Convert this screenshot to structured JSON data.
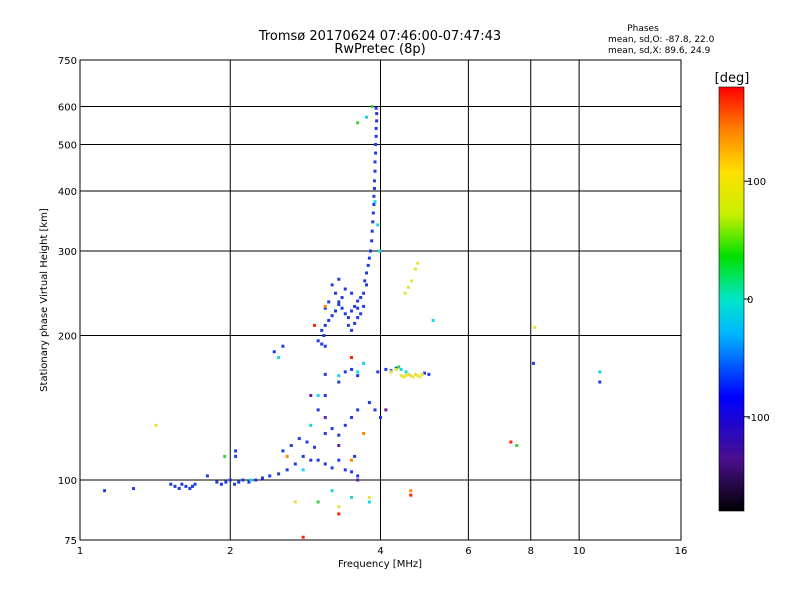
{
  "title_line1": "Tromsø 20170624 07:46:00-07:47:43",
  "title_line2": "RwPretec (8p)",
  "stats": {
    "heading": "Phases",
    "line_o": "mean, sd,O: -87.8, 22.0",
    "line_x": "mean, sd,X:  89.6, 24.9"
  },
  "chart_data": {
    "type": "scatter",
    "xlabel": "Frequency [MHz]",
    "ylabel": "Stationary phase Virtual Height [km]",
    "x_scale": "log",
    "y_scale": "log",
    "xlim": [
      1,
      16
    ],
    "ylim": [
      75,
      750
    ],
    "x_ticks": [
      1,
      2,
      4,
      6,
      8,
      10,
      16
    ],
    "y_ticks": [
      75,
      100,
      200,
      300,
      400,
      500,
      600,
      750
    ],
    "grid": true,
    "colorbar": {
      "label": "[deg]",
      "range": [
        -180,
        180
      ],
      "ticks": [
        100,
        0,
        -100
      ]
    },
    "colors": {
      "o_mode": "#1f3be6",
      "o_mode_alt": "#2a7bff",
      "x_mode": "#e8e23a",
      "x_mode_alt": "#f2c400",
      "cyan": "#19d6e6",
      "green": "#3ad13a",
      "red": "#ff2200",
      "orange": "#ff8800",
      "purple": "#6a1fa8"
    },
    "series": [
      {
        "color_key": "o_mode",
        "points": [
          [
            1.12,
            95
          ],
          [
            1.28,
            96
          ],
          [
            1.52,
            98
          ],
          [
            1.55,
            97
          ],
          [
            1.58,
            96
          ],
          [
            1.6,
            98
          ],
          [
            1.63,
            97
          ],
          [
            1.66,
            96
          ],
          [
            1.68,
            97
          ],
          [
            1.7,
            98
          ],
          [
            1.8,
            102
          ],
          [
            1.88,
            99
          ],
          [
            1.92,
            98
          ],
          [
            1.96,
            99
          ],
          [
            2.0,
            100
          ],
          [
            2.04,
            98
          ],
          [
            2.08,
            99
          ],
          [
            2.12,
            100
          ],
          [
            2.18,
            99
          ],
          [
            2.25,
            100
          ],
          [
            2.32,
            101
          ],
          [
            2.4,
            102
          ],
          [
            2.5,
            103
          ],
          [
            2.6,
            105
          ],
          [
            2.7,
            108
          ],
          [
            2.8,
            112
          ],
          [
            2.9,
            110
          ],
          [
            2.55,
            115
          ],
          [
            2.65,
            118
          ],
          [
            2.75,
            122
          ],
          [
            2.85,
            120
          ],
          [
            2.95,
            117
          ],
          [
            3.0,
            110
          ],
          [
            3.1,
            108
          ],
          [
            3.2,
            106
          ],
          [
            3.3,
            110
          ],
          [
            3.4,
            105
          ],
          [
            3.5,
            104
          ],
          [
            3.6,
            102
          ],
          [
            3.55,
            112
          ],
          [
            3.1,
            125
          ],
          [
            3.2,
            128
          ],
          [
            3.3,
            124
          ],
          [
            3.4,
            130
          ],
          [
            3.5,
            135
          ],
          [
            3.6,
            140
          ],
          [
            3.0,
            140
          ],
          [
            3.1,
            150
          ],
          [
            3.3,
            160
          ],
          [
            3.5,
            170
          ],
          [
            2.05,
            112
          ],
          [
            2.05,
            115
          ],
          [
            2.45,
            185
          ],
          [
            2.55,
            190
          ],
          [
            3.0,
            195
          ],
          [
            3.05,
            192
          ],
          [
            3.1,
            190
          ],
          [
            3.08,
            200
          ],
          [
            3.05,
            205
          ],
          [
            3.1,
            210
          ],
          [
            3.15,
            215
          ],
          [
            3.2,
            220
          ],
          [
            3.25,
            225
          ],
          [
            3.3,
            232
          ],
          [
            3.35,
            240
          ],
          [
            3.2,
            255
          ],
          [
            3.25,
            245
          ],
          [
            3.3,
            235
          ],
          [
            3.35,
            228
          ],
          [
            3.4,
            222
          ],
          [
            3.45,
            218
          ],
          [
            3.5,
            225
          ],
          [
            3.55,
            230
          ],
          [
            3.6,
            236
          ],
          [
            3.65,
            240
          ],
          [
            3.7,
            245
          ],
          [
            3.75,
            255
          ],
          [
            3.3,
            262
          ],
          [
            3.4,
            250
          ],
          [
            3.5,
            245
          ],
          [
            3.6,
            228
          ],
          [
            3.15,
            235
          ],
          [
            3.1,
            228
          ],
          [
            3.45,
            210
          ],
          [
            3.5,
            205
          ],
          [
            3.55,
            212
          ],
          [
            3.6,
            218
          ],
          [
            3.65,
            222
          ],
          [
            3.7,
            230
          ],
          [
            3.72,
            260
          ],
          [
            3.75,
            270
          ],
          [
            3.78,
            280
          ],
          [
            3.8,
            290
          ],
          [
            3.82,
            300
          ],
          [
            3.84,
            315
          ],
          [
            3.85,
            330
          ],
          [
            3.86,
            345
          ],
          [
            3.87,
            360
          ],
          [
            3.88,
            375
          ],
          [
            3.88,
            390
          ],
          [
            3.89,
            405
          ],
          [
            3.89,
            420
          ],
          [
            3.9,
            440
          ],
          [
            3.9,
            460
          ],
          [
            3.91,
            480
          ],
          [
            3.91,
            500
          ],
          [
            3.92,
            520
          ],
          [
            3.92,
            540
          ],
          [
            3.93,
            560
          ],
          [
            3.93,
            580
          ],
          [
            3.92,
            595
          ],
          [
            3.95,
            168
          ],
          [
            4.1,
            170
          ],
          [
            4.2,
            169
          ],
          [
            4.3,
            171
          ],
          [
            4.9,
            167
          ],
          [
            5.0,
            166
          ],
          [
            3.4,
            168
          ],
          [
            3.6,
            165
          ],
          [
            3.1,
            166
          ],
          [
            3.8,
            145
          ],
          [
            3.9,
            140
          ],
          [
            4.0,
            135
          ],
          [
            8.1,
            175
          ],
          [
            11.0,
            160
          ]
        ]
      },
      {
        "color_key": "cyan",
        "points": [
          [
            3.98,
            300
          ],
          [
            3.95,
            340
          ],
          [
            3.9,
            380
          ],
          [
            3.75,
            570
          ],
          [
            3.3,
            165
          ],
          [
            3.6,
            168
          ],
          [
            4.4,
            170
          ],
          [
            4.2,
            168
          ],
          [
            4.5,
            168
          ],
          [
            2.9,
            130
          ],
          [
            2.2,
            100
          ],
          [
            2.8,
            105
          ],
          [
            3.2,
            95
          ],
          [
            3.5,
            92
          ],
          [
            3.8,
            90
          ],
          [
            5.1,
            215
          ],
          [
            11.0,
            168
          ],
          [
            3.7,
            175
          ],
          [
            2.5,
            180
          ],
          [
            3.0,
            150
          ]
        ]
      },
      {
        "color_key": "x_mode",
        "points": [
          [
            4.48,
            245
          ],
          [
            4.55,
            252
          ],
          [
            4.62,
            260
          ],
          [
            4.7,
            275
          ],
          [
            4.75,
            283
          ],
          [
            4.4,
            165
          ],
          [
            4.45,
            164
          ],
          [
            4.5,
            165
          ],
          [
            4.55,
            166
          ],
          [
            4.6,
            165
          ],
          [
            4.65,
            164
          ],
          [
            4.7,
            166
          ],
          [
            4.75,
            165
          ],
          [
            4.8,
            164
          ],
          [
            4.85,
            166
          ],
          [
            4.3,
            170
          ],
          [
            4.2,
            168
          ],
          [
            1.42,
            130
          ],
          [
            2.7,
            90
          ],
          [
            3.3,
            88
          ],
          [
            3.8,
            92
          ],
          [
            8.15,
            208
          ]
        ]
      },
      {
        "color_key": "green",
        "points": [
          [
            3.6,
            555
          ],
          [
            3.85,
            600
          ],
          [
            4.35,
            172
          ],
          [
            1.95,
            112
          ],
          [
            7.5,
            118
          ],
          [
            3.0,
            90
          ]
        ]
      },
      {
        "color_key": "red",
        "points": [
          [
            2.8,
            76
          ],
          [
            2.95,
            210
          ],
          [
            3.3,
            85
          ],
          [
            7.3,
            120
          ],
          [
            4.6,
            93
          ],
          [
            3.5,
            180
          ]
        ]
      },
      {
        "color_key": "orange",
        "points": [
          [
            3.1,
            230
          ],
          [
            3.5,
            110
          ],
          [
            2.6,
            112
          ],
          [
            4.6,
            95
          ],
          [
            3.7,
            125
          ]
        ]
      },
      {
        "color_key": "purple",
        "points": [
          [
            3.3,
            118
          ],
          [
            3.1,
            135
          ],
          [
            4.1,
            140
          ],
          [
            2.9,
            150
          ],
          [
            3.6,
            100
          ]
        ]
      }
    ]
  }
}
